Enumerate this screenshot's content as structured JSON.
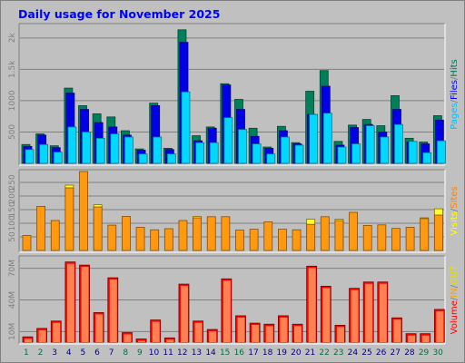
{
  "chart_data": {
    "type": "bar",
    "title": "Daily usage for November 2025",
    "x": [
      "1",
      "2",
      "3",
      "4",
      "5",
      "6",
      "7",
      "8",
      "9",
      "10",
      "11",
      "12",
      "13",
      "14",
      "15",
      "16",
      "17",
      "18",
      "19",
      "20",
      "21",
      "22",
      "23",
      "24",
      "25",
      "26",
      "27",
      "28",
      "29",
      "30"
    ],
    "weekend_days": [
      "1",
      "2",
      "8",
      "9",
      "15",
      "16",
      "22",
      "23",
      "29",
      "30"
    ],
    "panels": [
      {
        "name": "hits",
        "y_ticks": [
          {
            "v": 500,
            "label": "500"
          },
          {
            "v": 1000,
            "label": "1000"
          },
          {
            "v": 1500,
            "label": "1.5k"
          },
          {
            "v": 2000,
            "label": "2k"
          }
        ],
        "ylim": [
          0,
          2200
        ],
        "legend": [
          "Pages",
          "Files",
          "Hits"
        ],
        "legend_colors": [
          "#00c0ff",
          "#0000ff",
          "#007050"
        ],
        "series": [
          {
            "name": "Hits",
            "color": "#00805a",
            "values": [
              300,
              470,
              280,
              1200,
              920,
              790,
              740,
              520,
              230,
              960,
              240,
              2130,
              440,
              580,
              1270,
              1020,
              560,
              260,
              590,
              330,
              1150,
              1480,
              350,
              610,
              700,
              600,
              1080,
              400,
              340,
              760
            ]
          },
          {
            "name": "Files",
            "color": "#0000e6",
            "values": [
              270,
              450,
              250,
              1120,
              860,
              650,
              580,
              450,
              210,
              920,
              220,
              1930,
              360,
              560,
              1250,
              860,
              430,
              240,
              520,
              310,
              780,
              1230,
              290,
              570,
              620,
              500,
              860,
              340,
              310,
              690
            ]
          },
          {
            "name": "Pages",
            "color": "#00d8ff",
            "values": [
              220,
              300,
              180,
              580,
              500,
              400,
              470,
              420,
              150,
              420,
              150,
              1140,
              330,
              330,
              730,
              540,
              310,
              150,
              420,
              290,
              780,
              800,
              260,
              310,
              600,
              420,
              620,
              350,
              170,
              360
            ]
          }
        ]
      },
      {
        "name": "visits",
        "y_ticks": [
          {
            "v": 50,
            "label": "50"
          },
          {
            "v": 100,
            "label": "100"
          },
          {
            "v": 150,
            "label": "150"
          },
          {
            "v": 200,
            "label": "200"
          },
          {
            "v": 250,
            "label": "250"
          }
        ],
        "ylim": [
          0,
          290
        ],
        "legend": [
          "Visits",
          "Sites"
        ],
        "legend_colors": [
          "#ffff00",
          "#ff8000"
        ],
        "series": [
          {
            "name": "Sites",
            "color": "#ffff33",
            "values": [
              55,
              162,
              110,
              240,
              290,
              168,
              93,
              125,
              85,
              76,
              80,
              110,
              125,
              124,
              124,
              75,
              78,
              105,
              78,
              76,
              115,
              124,
              115,
              140,
              92,
              94,
              81,
              85,
              120,
              153
            ]
          },
          {
            "name": "Visits",
            "color": "#ff9a10",
            "values": [
              55,
              162,
              110,
              230,
              290,
              160,
              93,
              125,
              85,
              76,
              80,
              110,
              120,
              124,
              124,
              75,
              78,
              105,
              78,
              76,
              96,
              124,
              110,
              140,
              92,
              94,
              81,
              85,
              117,
              130
            ]
          }
        ]
      },
      {
        "name": "volume",
        "y_ticks": [
          {
            "v": 10,
            "label": "10M"
          },
          {
            "v": 40,
            "label": "40M"
          },
          {
            "v": 70,
            "label": "70M"
          }
        ],
        "ylim": [
          0,
          80
        ],
        "legend": [
          "Volume",
          "IN",
          "OUT"
        ],
        "legend_colors": [
          "#ff0000",
          "#ffa000",
          "#e0e000"
        ],
        "series": [
          {
            "name": "Volume",
            "color": "#ff0000",
            "values": [
              5,
              13,
              20,
              76,
              73,
              28,
              61,
              9,
              3,
              21,
              4,
              55,
              20,
              12,
              60,
              25,
              18,
              17,
              25,
              17,
              72,
              53,
              16,
              51,
              57,
              57,
              23,
              8,
              8,
              31
            ]
          },
          {
            "name": "Volume-face",
            "color": "#ff8050",
            "values": [
              5,
              13,
              20,
              76,
              73,
              28,
              61,
              9,
              3,
              21,
              4,
              55,
              20,
              12,
              60,
              25,
              18,
              17,
              25,
              17,
              72,
              53,
              16,
              51,
              57,
              57,
              23,
              8,
              8,
              31
            ]
          }
        ]
      }
    ]
  }
}
